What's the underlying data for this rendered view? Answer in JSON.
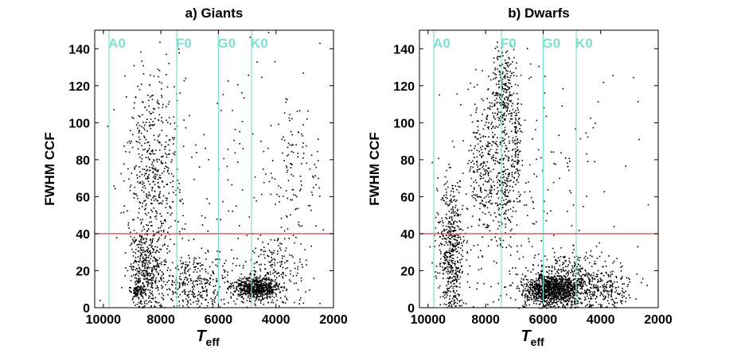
{
  "colors": {
    "spectral_lines": "#7fe0d0",
    "threshold_line": "#e85050",
    "points": "#000000"
  },
  "chart_data": [
    {
      "type": "scatter",
      "title": "a) Giants",
      "xlabel": "T",
      "xlabel_sub": "eff",
      "ylabel": "FWHM CCF",
      "xlim": [
        10300,
        2000
      ],
      "ylim": [
        0,
        150
      ],
      "x_ticks": [
        10000,
        8000,
        6000,
        4000,
        2000
      ],
      "y_ticks": [
        0,
        20,
        40,
        60,
        80,
        100,
        120,
        140
      ],
      "x_reversed": true,
      "horizontal_line": {
        "y": 40,
        "color": "#e85050"
      },
      "spectral_types": [
        {
          "label": "A0",
          "x": 9800
        },
        {
          "label": "F0",
          "x": 7450
        },
        {
          "label": "G0",
          "x": 6000
        },
        {
          "label": "K0",
          "x": 4850
        }
      ],
      "clusters": [
        {
          "xc": 8550,
          "xs": 300,
          "yc": 20,
          "ys": 12,
          "n": 400
        },
        {
          "xc": 8300,
          "xs": 450,
          "yc": 70,
          "ys": 28,
          "n": 520
        },
        {
          "xc": 8850,
          "xs": 90,
          "yc": 9,
          "ys": 1.5,
          "n": 70
        },
        {
          "xc": 6800,
          "xs": 700,
          "yc": 14,
          "ys": 8,
          "n": 330
        },
        {
          "xc": 4700,
          "xs": 350,
          "yc": 11,
          "ys": 3,
          "n": 650
        },
        {
          "xc": 4100,
          "xs": 600,
          "yc": 20,
          "ys": 10,
          "n": 220
        },
        {
          "xc": 3400,
          "xs": 500,
          "yc": 75,
          "ys": 20,
          "n": 110
        },
        {
          "xc": 6000,
          "xs": 2300,
          "yc": 75,
          "ys": 45,
          "n": 150
        }
      ]
    },
    {
      "type": "scatter",
      "title": "b) Dwarfs",
      "xlabel": "T",
      "xlabel_sub": "eff",
      "ylabel": "FWHM CCF",
      "xlim": [
        10300,
        2000
      ],
      "ylim": [
        0,
        150
      ],
      "x_ticks": [
        10000,
        8000,
        6000,
        4000,
        2000
      ],
      "y_ticks": [
        0,
        20,
        40,
        60,
        80,
        100,
        120,
        140
      ],
      "x_reversed": true,
      "horizontal_line": {
        "y": 40,
        "color": "#e85050"
      },
      "spectral_types": [
        {
          "label": "A0",
          "x": 9800
        },
        {
          "label": "F0",
          "x": 7450
        },
        {
          "label": "G0",
          "x": 6000
        },
        {
          "label": "K0",
          "x": 4850
        }
      ],
      "clusters": [
        {
          "xc": 9200,
          "xs": 250,
          "yc": 30,
          "ys": 18,
          "n": 500
        },
        {
          "xc": 8000,
          "xs": 350,
          "yc": 75,
          "ys": 18,
          "n": 300
        },
        {
          "xc": 7400,
          "xs": 200,
          "yc": 115,
          "ys": 15,
          "n": 280
        },
        {
          "xc": 7350,
          "xs": 120,
          "yc": 60,
          "ys": 15,
          "n": 120
        },
        {
          "xc": 6950,
          "xs": 80,
          "yc": 85,
          "ys": 15,
          "n": 100
        },
        {
          "xc": 5700,
          "xs": 500,
          "yc": 10,
          "ys": 4,
          "n": 1100
        },
        {
          "xc": 5000,
          "xs": 700,
          "yc": 16,
          "ys": 8,
          "n": 400
        },
        {
          "xc": 6500,
          "xs": 1800,
          "yc": 60,
          "ys": 45,
          "n": 250
        },
        {
          "xc": 3800,
          "xs": 500,
          "yc": 10,
          "ys": 5,
          "n": 150
        }
      ]
    }
  ]
}
